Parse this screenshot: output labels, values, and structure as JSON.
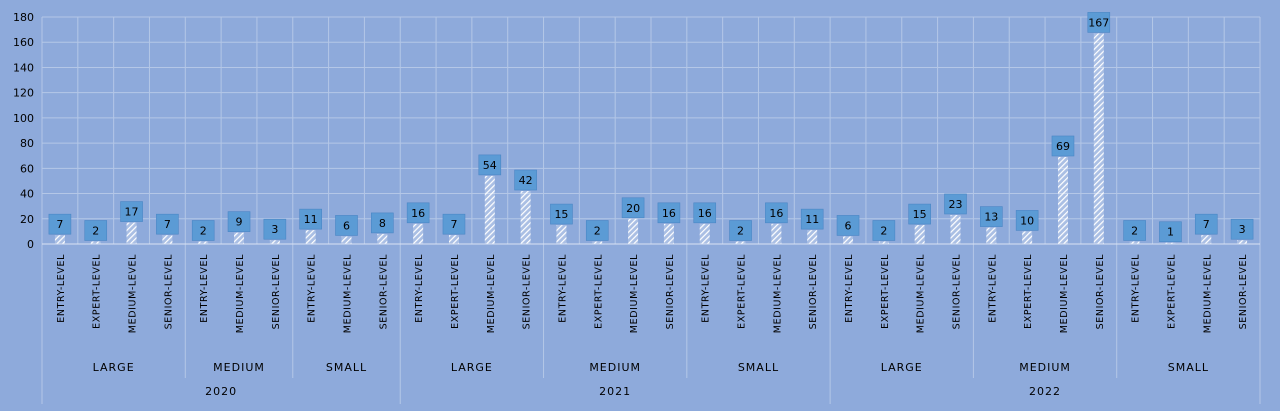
{
  "chart_data": {
    "type": "bar",
    "title": "",
    "xlabel": "",
    "ylabel": "",
    "ylim": [
      0,
      180
    ],
    "yticks": [
      0,
      20,
      40,
      60,
      80,
      100,
      120,
      140,
      160,
      180
    ],
    "grid": true,
    "legend": "none",
    "colors": {
      "background": "#8eaadb",
      "bar_hatch": "#ffffff",
      "label_box": "#5b9bd5",
      "gridline": "#b4c7e7",
      "text": "#000000"
    },
    "groups": [
      {
        "year": "2020",
        "sizes": [
          {
            "size": "LARGE",
            "items": [
              {
                "level": "ENTRY-LEVEL",
                "value": 7
              },
              {
                "level": "EXPERT-LEVEL",
                "value": 2
              },
              {
                "level": "MEDIUM-LEVEL",
                "value": 17
              },
              {
                "level": "SENIOR-LEVEL",
                "value": 7
              }
            ]
          },
          {
            "size": "MEDIUM",
            "items": [
              {
                "level": "ENTRY-LEVEL",
                "value": 2
              },
              {
                "level": "MEDIUM-LEVEL",
                "value": 9
              },
              {
                "level": "SENIOR-LEVEL",
                "value": 3
              }
            ]
          },
          {
            "size": "SMALL",
            "items": [
              {
                "level": "ENTRY-LEVEL",
                "value": 11
              },
              {
                "level": "MEDIUM-LEVEL",
                "value": 6
              },
              {
                "level": "SENIOR-LEVEL",
                "value": 8
              }
            ]
          }
        ]
      },
      {
        "year": "2021",
        "sizes": [
          {
            "size": "LARGE",
            "items": [
              {
                "level": "ENTRY-LEVEL",
                "value": 16
              },
              {
                "level": "EXPERT-LEVEL",
                "value": 7
              },
              {
                "level": "MEDIUM-LEVEL",
                "value": 54
              },
              {
                "level": "SENIOR-LEVEL",
                "value": 42
              }
            ]
          },
          {
            "size": "MEDIUM",
            "items": [
              {
                "level": "ENTRY-LEVEL",
                "value": 15
              },
              {
                "level": "EXPERT-LEVEL",
                "value": 2
              },
              {
                "level": "MEDIUM-LEVEL",
                "value": 20
              },
              {
                "level": "SENIOR-LEVEL",
                "value": 16
              }
            ]
          },
          {
            "size": "SMALL",
            "items": [
              {
                "level": "ENTRY-LEVEL",
                "value": 16
              },
              {
                "level": "EXPERT-LEVEL",
                "value": 2
              },
              {
                "level": "MEDIUM-LEVEL",
                "value": 16
              },
              {
                "level": "SENIOR-LEVEL",
                "value": 11
              }
            ]
          }
        ]
      },
      {
        "year": "2022",
        "sizes": [
          {
            "size": "LARGE",
            "items": [
              {
                "level": "ENTRY-LEVEL",
                "value": 6
              },
              {
                "level": "EXPERT-LEVEL",
                "value": 2
              },
              {
                "level": "MEDIUM-LEVEL",
                "value": 15
              },
              {
                "level": "SENIOR-LEVEL",
                "value": 23
              }
            ]
          },
          {
            "size": "MEDIUM",
            "items": [
              {
                "level": "ENTRY-LEVEL",
                "value": 13
              },
              {
                "level": "EXPERT-LEVEL",
                "value": 10
              },
              {
                "level": "MEDIUM-LEVEL",
                "value": 69
              },
              {
                "level": "SENIOR-LEVEL",
                "value": 167
              }
            ]
          },
          {
            "size": "SMALL",
            "items": [
              {
                "level": "ENTRY-LEVEL",
                "value": 2
              },
              {
                "level": "EXPERT-LEVEL",
                "value": 1
              },
              {
                "level": "MEDIUM-LEVEL",
                "value": 7
              },
              {
                "level": "SENIOR-LEVEL",
                "value": 3
              }
            ]
          }
        ]
      }
    ]
  }
}
